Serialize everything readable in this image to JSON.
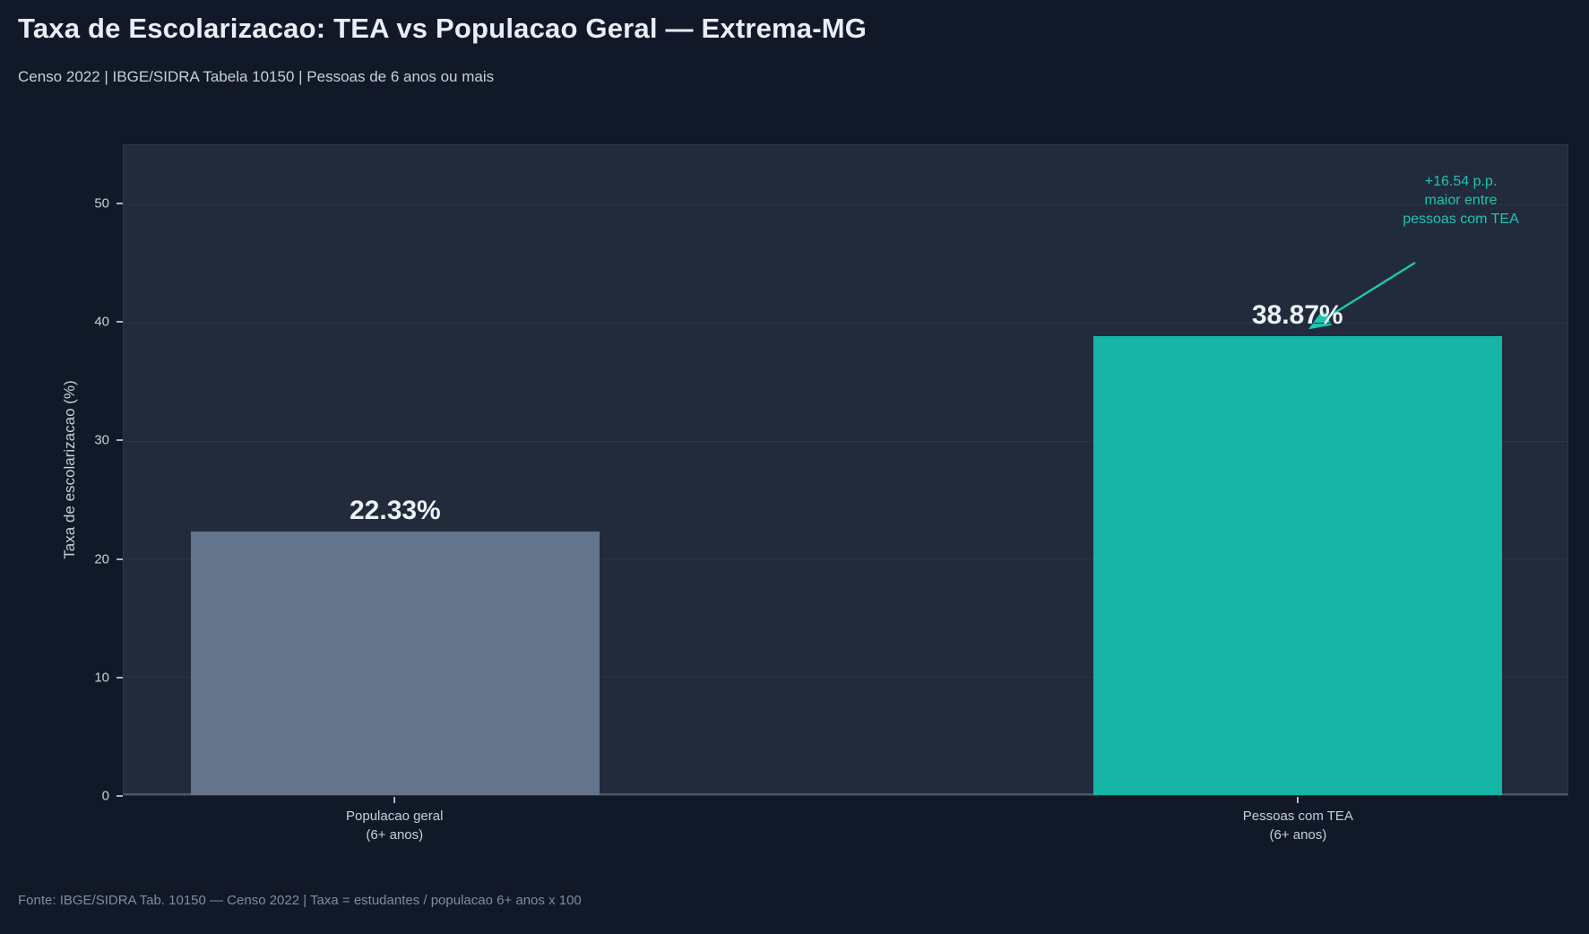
{
  "header": {
    "title": "Taxa de Escolarizacao: TEA vs Populacao Geral — Extrema-MG",
    "subtitle": "Censo 2022 | IBGE/SIDRA Tabela 10150 | Pessoas de 6 anos ou mais"
  },
  "footer": {
    "source": "Fonte: IBGE/SIDRA Tab. 10150 — Censo 2022 | Taxa = estudantes / populacao 6+ anos x 100"
  },
  "colors": {
    "page_bg": "#111827",
    "plot_bg": "#212b3b",
    "gridline": "#2a3547",
    "bar_general": "#64748b",
    "bar_tea": "#16b5a6",
    "annotation_teal": "#1ec4b2",
    "value_label": "#edf1f7",
    "tick_text": "#c6cfdd"
  },
  "chart_data": {
    "type": "bar",
    "title": "Taxa de Escolarizacao: TEA vs Populacao Geral — Extrema-MG",
    "subtitle": "Censo 2022 | IBGE/SIDRA Tabela 10150 | Pessoas de 6 anos ou mais",
    "categories": [
      [
        "Populacao geral",
        "(6+ anos)"
      ],
      [
        "Pessoas com TEA",
        "(6+ anos)"
      ]
    ],
    "values": [
      22.33,
      38.87
    ],
    "value_labels": [
      "22.33%",
      "38.87%"
    ],
    "series_colors": [
      "#64748b",
      "#16b5a6"
    ],
    "xlabel": "",
    "ylabel": "Taxa de escolarizacao (%)",
    "yticks": [
      0,
      10,
      20,
      30,
      40,
      50
    ],
    "ylim": [
      0,
      55
    ],
    "grid": "horizontal",
    "legend": "none",
    "annotation": {
      "lines": [
        "+16.54 p.p.",
        "maior entre",
        "pessoas com TEA"
      ],
      "diff_pp": 16.54,
      "color": "#1ec4b2"
    },
    "layout": {
      "bar_center_fracs": [
        0.188,
        0.813
      ],
      "bar_width_frac": 0.283
    }
  }
}
